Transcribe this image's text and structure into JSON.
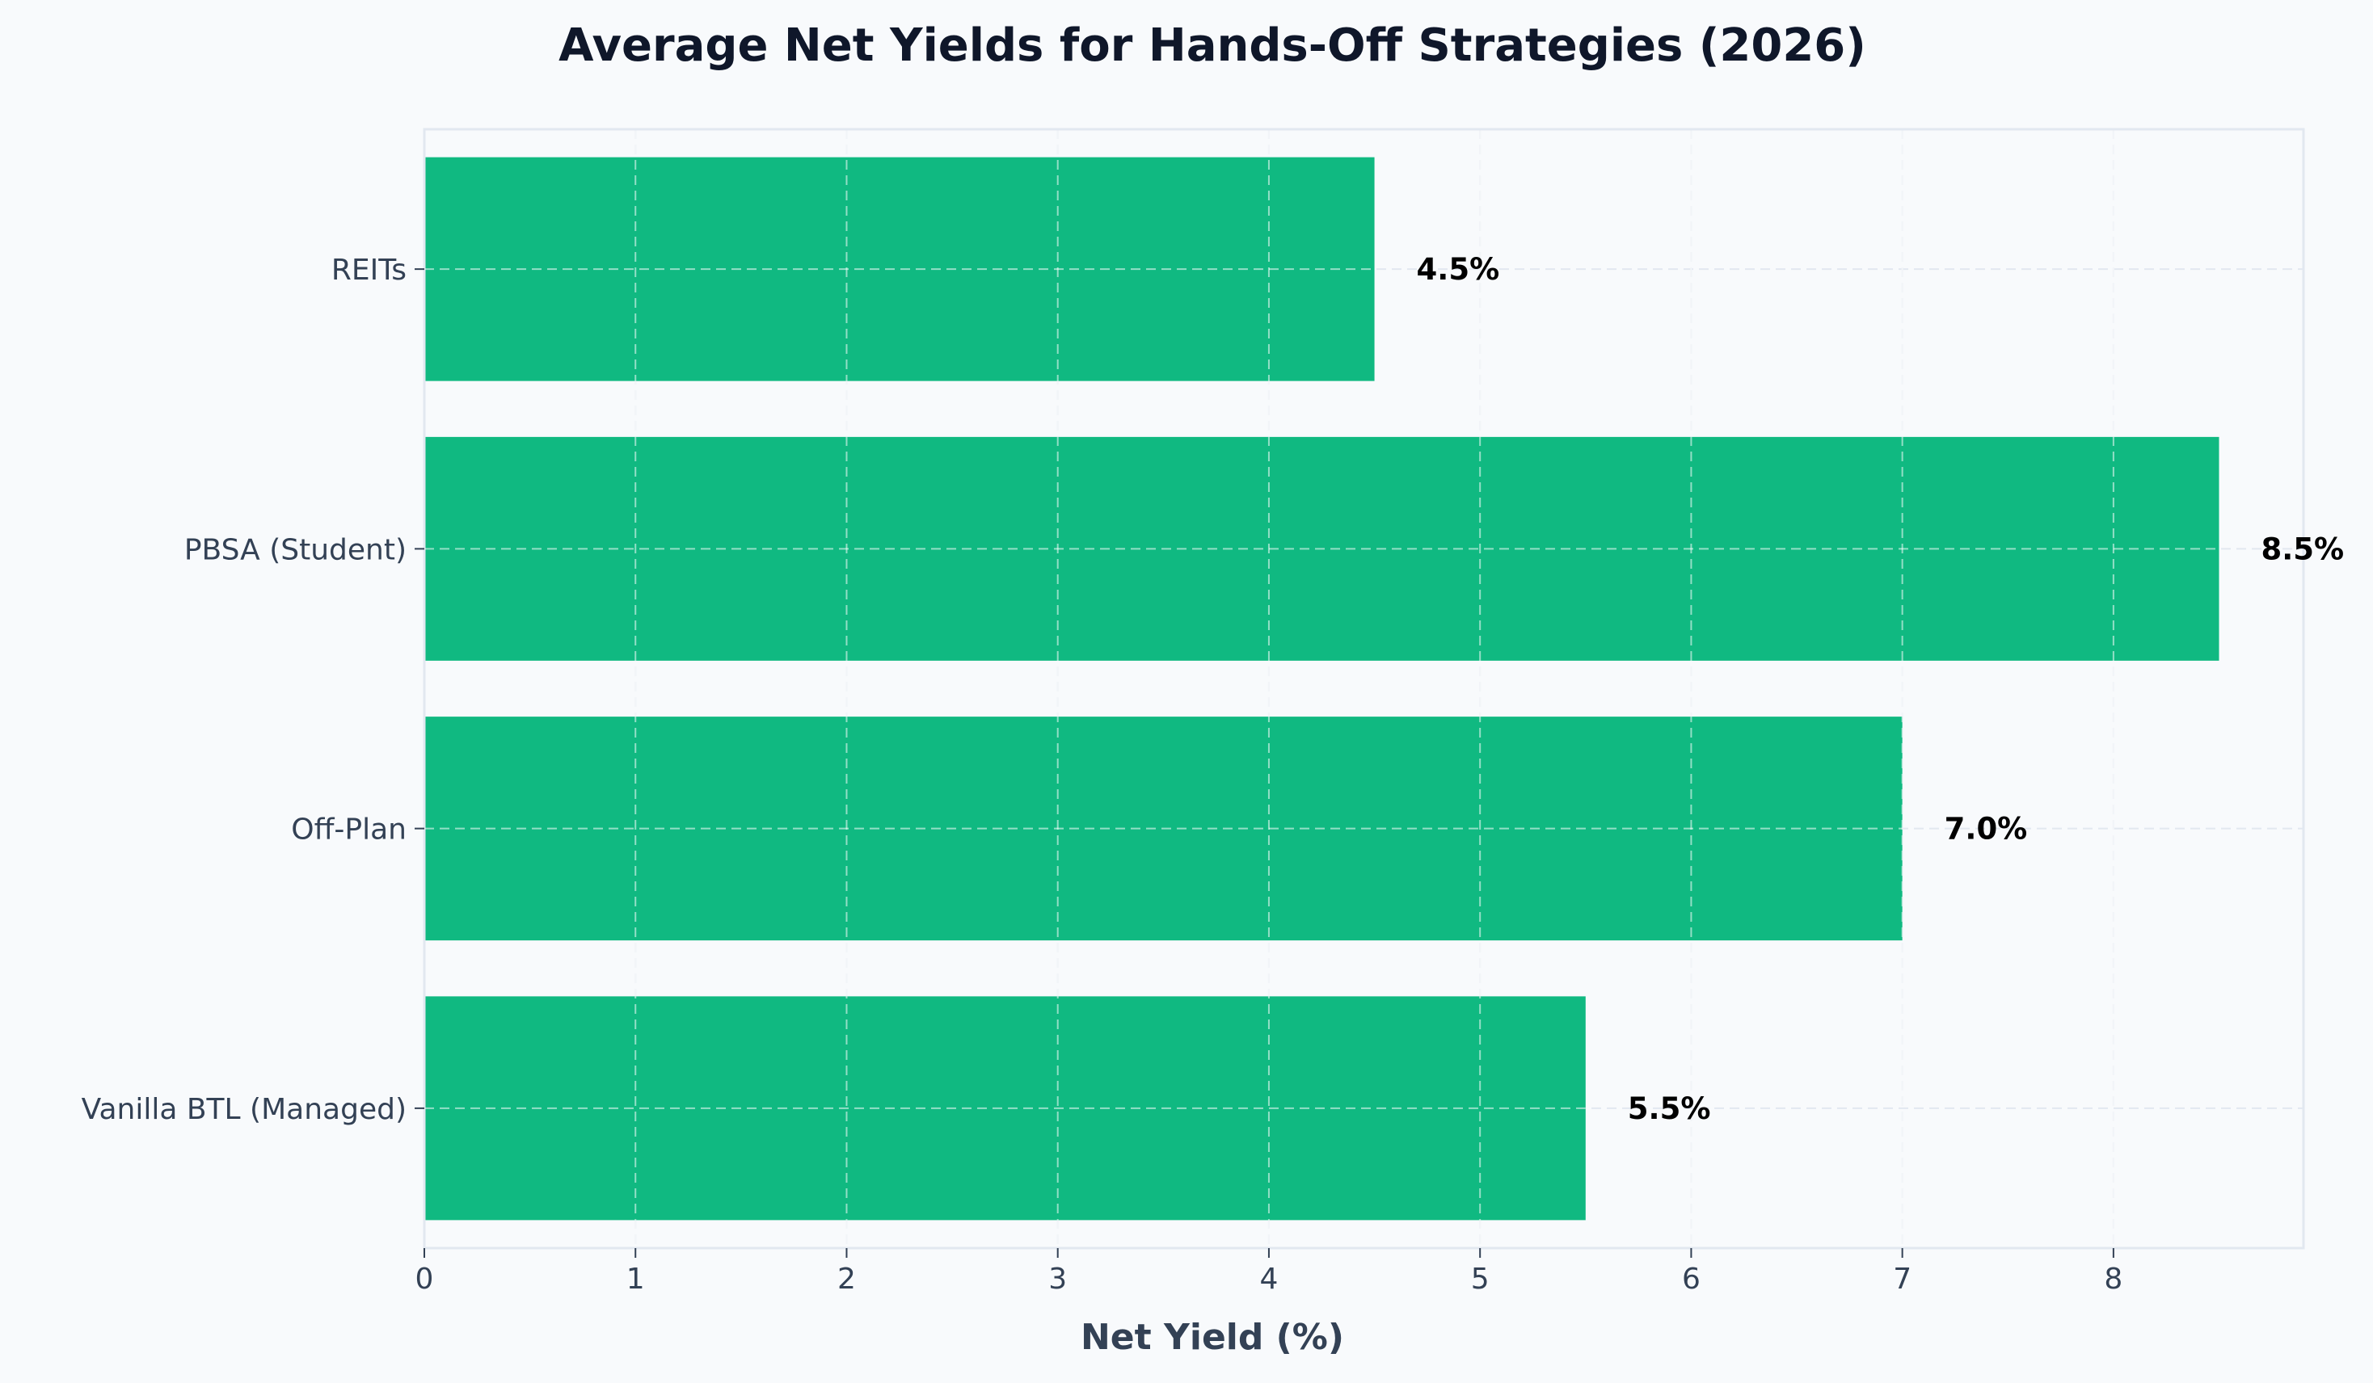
{
  "chart_data": {
    "type": "bar",
    "orientation": "horizontal",
    "title": "Average Net Yields for Hands-Off Strategies (2026)",
    "xlabel": "Net Yield (%)",
    "ylabel": "",
    "categories": [
      "Vanilla BTL (Managed)",
      "Off-Plan",
      "PBSA (Student)",
      "REITs"
    ],
    "values": [
      5.5,
      7.0,
      8.5,
      4.5
    ],
    "value_labels": [
      "5.5%",
      "7.0%",
      "8.5%",
      "4.5%"
    ],
    "xlim": [
      0,
      8.9
    ],
    "xticks": [
      0,
      1,
      2,
      3,
      4,
      5,
      6,
      7,
      8
    ],
    "xtick_labels": [
      "0",
      "1",
      "2",
      "3",
      "4",
      "5",
      "6",
      "7",
      "8"
    ],
    "grid": true,
    "grid_style": "dashed",
    "colors": {
      "bar": "#10b981",
      "background": "#f8fafc",
      "title": "#0f172a",
      "axis_text": "#334155",
      "spine": "#e2e8f0",
      "grid": "#e2e8f0",
      "value_label": "#000000"
    }
  }
}
